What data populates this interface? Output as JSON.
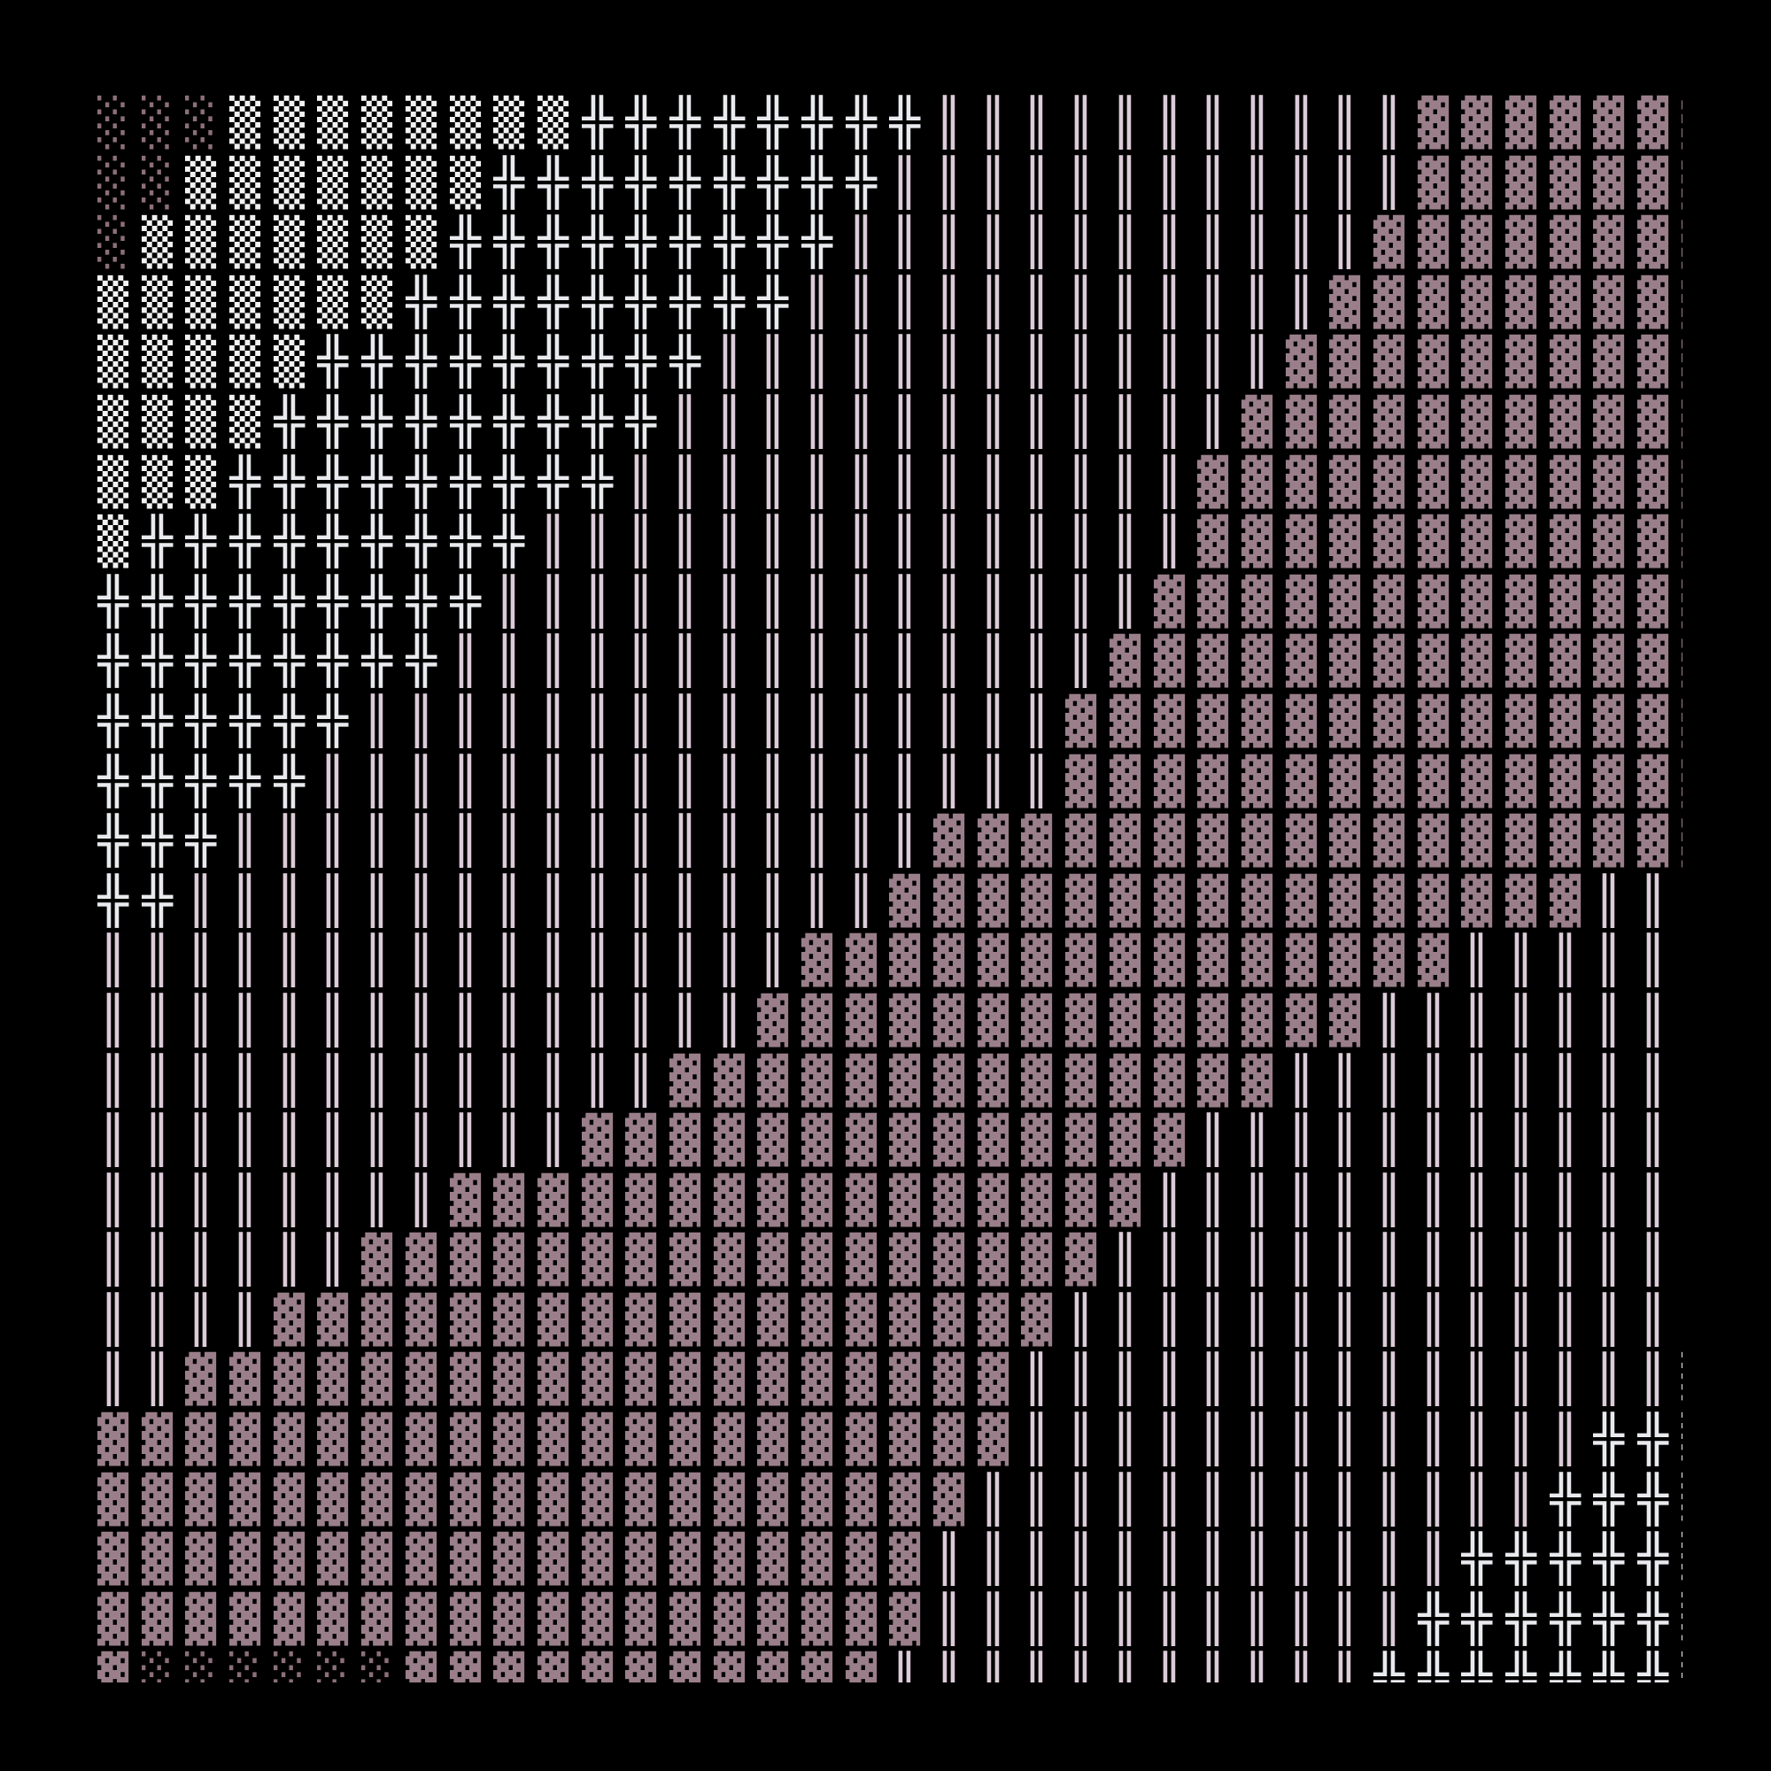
{
  "palette": {
    "background": "#000000",
    "░": "#8c6f7c",
    "▒": "#f2f2f2",
    "╬": "#e8eaee",
    "║": "#dccbd8",
    "▓": "#9a7f8a"
  },
  "glyph_names": {
    "░": "light-shade",
    "▒": "medium-shade",
    "╬": "double-cross",
    "║": "double-vertical",
    "▓": "dark-shade"
  },
  "rows": [
    "░░░▒▒▒▒▒▒▒▒╬╬╬╬╬╬╬╬║║║║║║║║║║║▓▓▓▓▓▓▓",
    "░░▒▒▒▒▒▒▒╬╬╬╬╬╬╬╬╬║║║║║║║║║║║║▓▓▓▓▓▓▓",
    "░▒▒▒▒▒▒▒╬╬╬╬╬╬╬╬╬║║║║║║║║║║║║▓▓▓▓▓▓▓▓",
    "▒▒▒▒▒▒▒╬╬╬╬╬╬╬╬╬║║║║║║║║║║║║▓▓▓▓▓▓▓▓▓",
    "▒▒▒▒▒╬╬╬╬╬╬╬╬╬║║║║║║║║║║║║║▓▓▓▓▓▓▓▓▓▓",
    "▒▒▒▒╬╬╬╬╬╬╬╬╬║║║║║║║║║║║║║▓▓▓▓▓▓▓▓▓▓▓",
    "▒▒▒╬╬╬╬╬╬╬╬╬║║║║║║║║║║║║║▓▓▓▓▓▓▓▓▓▓▓▓",
    "▒╬╬╬╬╬╬╬╬╬║║║║║║║║║║║║║║║▓▓▓▓▓▓▓▓▓▓▓▓",
    "╬╬╬╬╬╬╬╬╬║║║║║║║║║║║║║║║▓▓▓▓▓▓▓▓▓▓▓▓▓",
    "╬╬╬╬╬╬╬╬║║║║║║║║║║║║║║║▓▓▓▓▓▓▓▓▓▓▓▓▓▓",
    "╬╬╬╬╬╬║║║║║║║║║║║║║║║║▓▓▓▓▓▓▓▓▓▓▓▓▓▓▓",
    "╬╬╬╬╬║║║║║║║║║║║║║║║║║▓▓▓▓▓▓▓▓▓▓▓▓▓▓▓▓",
    "╬╬╬║║║║║║║║║║║║║║║║▓▓▓▓▓▓▓▓▓▓▓▓▓▓▓▓▓▓",
    "╬╬║║║║║║║║║║║║║║║║▓▓▓▓▓▓▓▓▓▓▓▓▓▓▓▓║║║",
    "║║║║║║║║║║║║║║║║▓▓▓▓▓▓▓▓▓▓▓▓▓▓▓║║║║║║",
    "║║║║║║║║║║║║║║║▓▓▓▓▓▓▓▓▓▓▓▓▓▓║║║║║║║║",
    "║║║║║║║║║║║║║▓▓▓▓▓▓▓▓▓▓▓▓▓▓║║║║║║║║║║",
    "║║║║║║║║║║║▓▓▓▓▓▓▓▓▓▓▓▓▓▓║║║║║║║║║║║║",
    "║║║║║║║║▓▓▓▓▓▓▓▓▓▓▓▓▓▓▓▓║║║║║║║║║║║║║",
    "║║║║║║▓▓▓▓▓▓▓▓▓▓▓▓▓▓▓▓▓║║║║║║║║║║║║║║",
    "║║║║▓▓▓▓▓▓▓▓▓▓▓▓▓▓▓▓▓▓║║║║║║║║║║║║║║║",
    "║║▓▓▓▓▓▓▓▓▓▓▓▓▓▓▓▓▓▓▓║║║║║║║║║║║║║║║▒",
    "▓▓▓▓▓▓▓▓▓▓▓▓▓▓▓▓▓▓▓▓▓║║║║║║║║║║║║║╬╬▒",
    "▓▓▓▓▓▓▓▓▓▓▓▓▓▓▓▓▓▓▓▓║║║║║║║║║║║║║╬╬╬▒",
    "▓▓▓▓▓▓▓▓▓▓▓▓▓▓▓▓▓▓▓║║║║║║║║║║║║╬╬╬╬╬▒",
    "▓▓▓▓▓▓▓▓▓▓▓▓▓▓▓▓▓▓▓║║║║║║║║║║║╬╬╬╬╬╬▒",
    "▓░░░░░░▓▓▓▓▓▓▓▓▓▓▓║║║║║║║║║║║╬╬╬╬╬╬╬▒"
  ]
}
